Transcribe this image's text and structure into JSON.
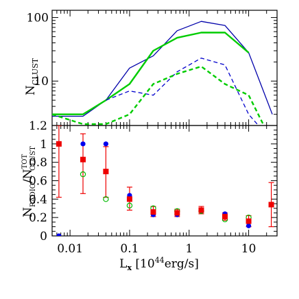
{
  "chart_data": [
    {
      "type": "line",
      "xlabel": "",
      "ylabel": "N",
      "ylabel_sub": "CLUST",
      "xscale": "log",
      "yscale": "log",
      "xlim": [
        0.005,
        30
      ],
      "ylim": [
        2,
        130
      ],
      "yticks": [
        10,
        100
      ],
      "ytick_labels": [
        "10",
        "100"
      ],
      "series": [
        {
          "color": "#0000aa",
          "style": "solid",
          "x": [
            0.005,
            0.0165,
            0.04,
            0.1,
            0.25,
            0.63,
            1.6,
            4,
            10,
            25
          ],
          "y": [
            2.8,
            2.8,
            5,
            16,
            25,
            62,
            87,
            75,
            28,
            3
          ]
        },
        {
          "color": "#00cc00",
          "style": "solid",
          "x": [
            0.005,
            0.0165,
            0.04,
            0.1,
            0.25,
            0.63,
            1.6,
            4,
            10
          ],
          "y": [
            3,
            3,
            5,
            9,
            30,
            48,
            58,
            58,
            28
          ]
        },
        {
          "color": "#0000cc",
          "style": "dashed",
          "x": [
            0.04,
            0.1,
            0.25,
            0.63,
            1.6,
            4,
            10,
            18
          ],
          "y": [
            5,
            7,
            6,
            14,
            23,
            18,
            3,
            1.6
          ]
        },
        {
          "color": "#00cc00",
          "style": "dashed",
          "x": [
            0.005,
            0.0165,
            0.04,
            0.1,
            0.25,
            0.63,
            1.6,
            4,
            10,
            18
          ],
          "y": [
            3,
            2.1,
            2.1,
            3,
            9,
            13,
            17,
            9,
            6,
            2
          ]
        }
      ]
    },
    {
      "type": "scatter",
      "xlabel": "L",
      "xlabel_sub": "x",
      "xlabel_rest": " [10",
      "xlabel_sup": "44",
      "xlabel_end": "erg/s]",
      "ylabel_main": "N",
      "ylabel_sub1": "RADIO",
      "ylabel_mid": "/N",
      "ylabel_sup2": "TOT",
      "ylabel_sub2": "CLUST",
      "xscale": "log",
      "xlim": [
        0.005,
        30
      ],
      "ylim": [
        0,
        1.2
      ],
      "xticks": [
        0.01,
        0.1,
        1,
        10
      ],
      "xtick_labels": [
        "0.01",
        "0.1",
        "1",
        "10"
      ],
      "yticks": [
        0,
        0.2,
        0.4,
        0.6,
        0.8,
        1,
        1.2
      ],
      "ytick_labels": [
        "0",
        "0.2",
        "0.4",
        "0.6",
        "0.8",
        "1",
        "1.2"
      ],
      "series": [
        {
          "marker": "filled-circle",
          "color": "#0000ee",
          "x": [
            0.0065,
            0.0165,
            0.04,
            0.1,
            0.25,
            0.63,
            1.6,
            4,
            10
          ],
          "y": [
            0.0,
            1.0,
            1.0,
            0.44,
            0.23,
            0.23,
            0.27,
            0.24,
            0.11
          ]
        },
        {
          "marker": "open-circle",
          "color": "#00bb00",
          "x": [
            0.0165,
            0.04,
            0.1,
            0.25,
            0.63,
            1.6,
            4,
            10
          ],
          "y": [
            0.67,
            0.4,
            0.33,
            0.3,
            0.27,
            0.27,
            0.18,
            0.2
          ]
        },
        {
          "marker": "filled-square",
          "color": "#ee0000",
          "errorbars": true,
          "x": [
            0.0065,
            0.0165,
            0.04,
            0.1,
            0.25,
            0.63,
            1.6,
            4,
            10,
            24
          ],
          "y": [
            1.0,
            0.83,
            0.7,
            0.4,
            0.26,
            0.25,
            0.28,
            0.21,
            0.16,
            0.34
          ],
          "yerr_low": [
            0.58,
            0.37,
            0.28,
            0.12,
            0.05,
            0.04,
            0.04,
            0.04,
            0.06,
            0.24
          ],
          "yerr_high": [
            0.2,
            0.28,
            0.27,
            0.13,
            0.06,
            0.04,
            0.04,
            0.04,
            0.06,
            0.24
          ]
        }
      ]
    }
  ]
}
